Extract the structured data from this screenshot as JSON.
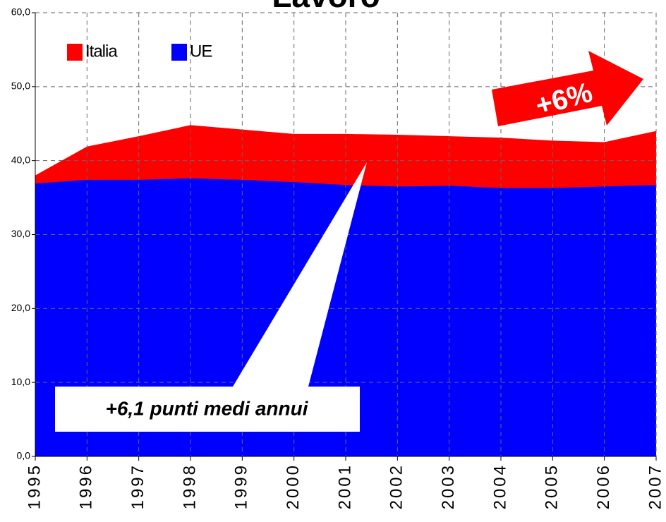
{
  "chart_data": {
    "type": "area",
    "title": "Lavoro",
    "categories": [
      "1995",
      "1996",
      "1997",
      "1998",
      "1999",
      "2000",
      "2001",
      "2002",
      "2003",
      "2004",
      "2005",
      "2006",
      "2007"
    ],
    "series": [
      {
        "name": "Italia",
        "color": "#ff0000",
        "values": [
          38.0,
          41.9,
          43.3,
          44.8,
          44.2,
          43.6,
          43.6,
          43.5,
          43.3,
          43.1,
          42.7,
          42.5,
          44.0
        ]
      },
      {
        "name": "UE",
        "color": "#0000ff",
        "values": [
          36.9,
          37.4,
          37.4,
          37.6,
          37.4,
          37.1,
          36.7,
          36.5,
          36.6,
          36.3,
          36.3,
          36.5,
          36.7
        ]
      }
    ],
    "ylim": [
      0,
      60
    ],
    "yticks": [
      {
        "value": 0,
        "label": "0,0"
      },
      {
        "value": 10,
        "label": "10,0"
      },
      {
        "value": 20,
        "label": "20,0"
      },
      {
        "value": 30,
        "label": "30,0"
      },
      {
        "value": 40,
        "label": "40,0"
      },
      {
        "value": 50,
        "label": "50,0"
      },
      {
        "value": 60,
        "label": "60,0"
      }
    ],
    "grid": true,
    "legend": "top-left",
    "annotations": [
      "+6%",
      "+6,1 punti medi annui"
    ]
  }
}
